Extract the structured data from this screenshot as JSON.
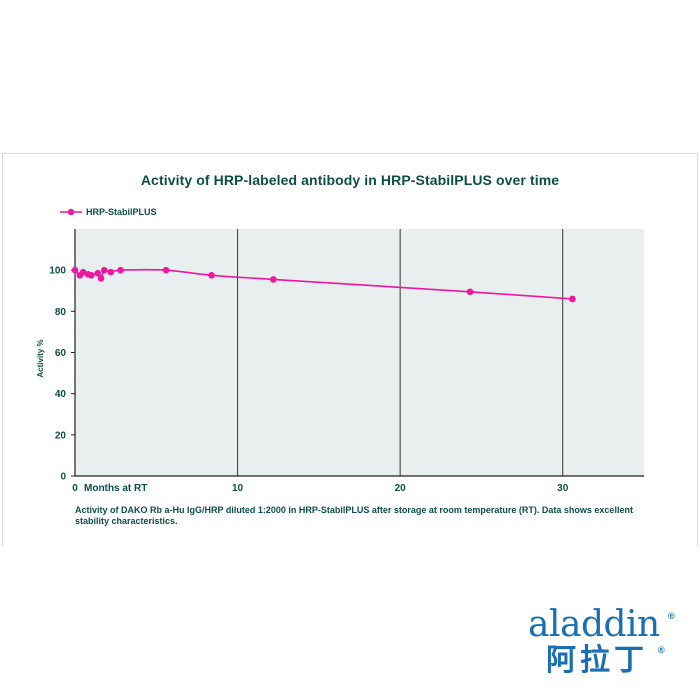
{
  "chart_data": {
    "type": "line",
    "title": "Activity of HRP-labeled antibody in HRP-StabilPLUS over time",
    "xlabel": "Months at RT",
    "ylabel": "Activity %",
    "xlim": [
      0,
      35
    ],
    "ylim": [
      0,
      120
    ],
    "xticks": [
      0,
      10,
      20,
      30
    ],
    "yticks": [
      0,
      20,
      40,
      60,
      80,
      100
    ],
    "vertical_gridlines": [
      10,
      20,
      30
    ],
    "legend": "top-left",
    "series": [
      {
        "name": "HRP-StabilPLUS",
        "color": "#f0169f",
        "points": [
          [
            0,
            100
          ],
          [
            0.3,
            97.5
          ],
          [
            0.5,
            99
          ],
          [
            0.8,
            98
          ],
          [
            1.0,
            97.5
          ],
          [
            1.4,
            98.5
          ],
          [
            1.6,
            96
          ],
          [
            1.8,
            100
          ],
          [
            2.2,
            99
          ],
          [
            2.8,
            100
          ],
          [
            5.6,
            100
          ],
          [
            8.4,
            97.5
          ],
          [
            12.2,
            95.5
          ],
          [
            24.3,
            89.5
          ],
          [
            30.6,
            86
          ]
        ]
      }
    ]
  },
  "caption": "Activity of DAKO Rb a-Hu IgG/HRP diluted 1:2000 in HRP-StabilPLUS after storage at room temperature (RT). Data shows excellent stability characteristics.",
  "logo": {
    "name_en": "aladdin",
    "name_cn": "阿拉丁",
    "registered": "®"
  }
}
